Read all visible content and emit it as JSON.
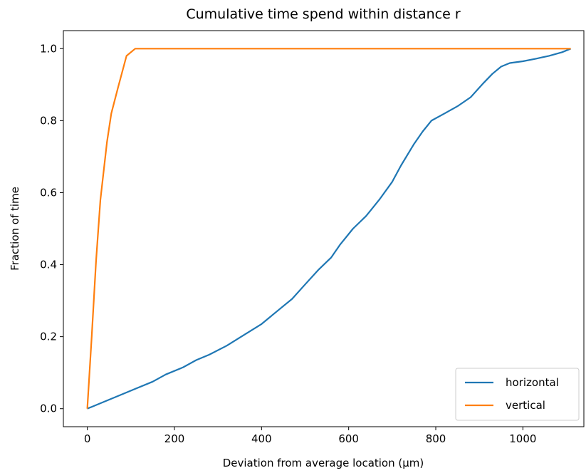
{
  "chart_data": {
    "type": "line",
    "title": "Cumulative time spend within distance r",
    "xlabel": "Deviation from average location (µm)",
    "ylabel": "Fraction of time",
    "xlim": [
      -55,
      1140
    ],
    "ylim": [
      -0.05,
      1.05
    ],
    "xticks": [
      0,
      200,
      400,
      600,
      800,
      1000
    ],
    "yticks": [
      0.0,
      0.2,
      0.4,
      0.6,
      0.8,
      1.0
    ],
    "xtick_labels": [
      "0",
      "200",
      "400",
      "600",
      "800",
      "1000"
    ],
    "ytick_labels": [
      "0.0",
      "0.2",
      "0.4",
      "0.6",
      "0.8",
      "1.0"
    ],
    "legend_position": "lower-right",
    "series": [
      {
        "name": "horizontal",
        "color": "#1f77b4",
        "x": [
          0,
          30,
          70,
          110,
          150,
          180,
          220,
          250,
          280,
          320,
          360,
          400,
          440,
          470,
          500,
          530,
          560,
          580,
          610,
          640,
          670,
          700,
          720,
          750,
          770,
          790,
          820,
          850,
          880,
          910,
          930,
          950,
          970,
          1000,
          1030,
          1060,
          1090,
          1110
        ],
        "y": [
          0.0,
          0.015,
          0.035,
          0.055,
          0.075,
          0.095,
          0.115,
          0.135,
          0.15,
          0.175,
          0.205,
          0.235,
          0.275,
          0.305,
          0.345,
          0.385,
          0.42,
          0.455,
          0.5,
          0.535,
          0.58,
          0.63,
          0.675,
          0.735,
          0.77,
          0.8,
          0.82,
          0.84,
          0.865,
          0.905,
          0.93,
          0.95,
          0.96,
          0.965,
          0.972,
          0.98,
          0.99,
          1.0
        ]
      },
      {
        "name": "vertical",
        "color": "#ff7f0e",
        "x": [
          0,
          10,
          20,
          30,
          45,
          55,
          70,
          90,
          110,
          150,
          300,
          600,
          900,
          1110
        ],
        "y": [
          0.0,
          0.2,
          0.41,
          0.58,
          0.74,
          0.82,
          0.89,
          0.98,
          1.0,
          1.0,
          1.0,
          1.0,
          1.0,
          1.0
        ]
      }
    ]
  }
}
